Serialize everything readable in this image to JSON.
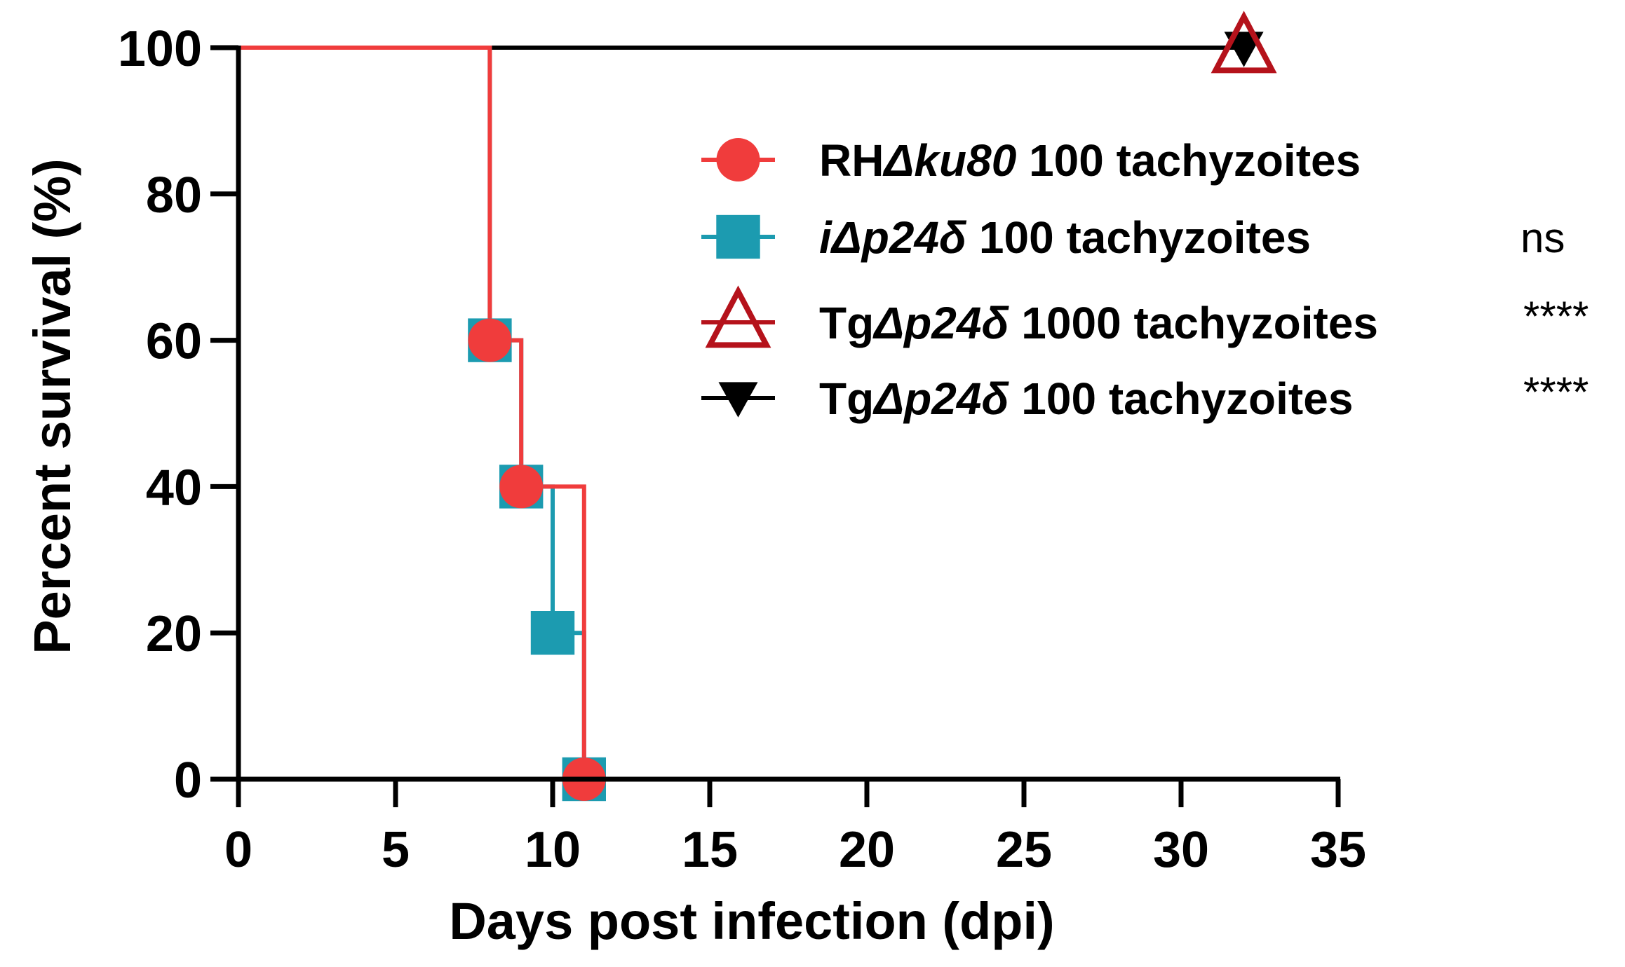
{
  "chart_data": {
    "type": "line",
    "subtype": "kaplan-meier survival",
    "xlabel": "Days post infection (dpi)",
    "ylabel": "Percent survival (%)",
    "xlim": [
      0,
      35
    ],
    "ylim": [
      0,
      100
    ],
    "xticks": [
      0,
      5,
      10,
      15,
      20,
      25,
      30,
      35
    ],
    "yticks": [
      0,
      20,
      40,
      60,
      80,
      100
    ],
    "legend_position": "top-right",
    "series": [
      {
        "id": "rh",
        "name": "RHΔku80 100 tachyzoites",
        "name_roman": "RH",
        "name_italic": "Δku80",
        "name_suffix": " 100 tachyzoites",
        "significance": "",
        "color": "#f03c3c",
        "marker": "circle",
        "x": [
          0,
          8,
          9,
          11
        ],
        "y": [
          100,
          60,
          40,
          0
        ],
        "markers": [
          [
            8,
            60
          ],
          [
            9,
            40
          ],
          [
            11,
            0
          ]
        ]
      },
      {
        "id": "idelta",
        "name": "iΔp24δ 100 tachyzoites",
        "name_roman": "",
        "name_italic": "iΔp24δ",
        "name_suffix": " 100 tachyzoites",
        "significance": "ns",
        "color": "#1c9bb0",
        "marker": "square",
        "x": [
          0,
          8,
          9,
          10,
          11
        ],
        "y": [
          100,
          60,
          40,
          20,
          0
        ],
        "markers": [
          [
            8,
            60
          ],
          [
            9,
            40
          ],
          [
            10,
            20
          ],
          [
            11,
            0
          ]
        ]
      },
      {
        "id": "tg1000",
        "name": "TgΔp24δ 1000 tachyzoites",
        "name_roman": "Tg",
        "name_italic": "Δp24δ",
        "name_suffix": " 1000 tachyzoites",
        "significance": "****",
        "color": "#b5121b",
        "marker": "triangle-up-open",
        "x": [
          0,
          32
        ],
        "y": [
          100,
          100
        ],
        "markers": [
          [
            32,
            100
          ]
        ]
      },
      {
        "id": "tg100",
        "name": "TgΔp24δ 100 tachyzoites",
        "name_roman": "Tg",
        "name_italic": "Δp24δ",
        "name_suffix": " 100 tachyzoites",
        "significance": "****",
        "color": "#000000",
        "marker": "triangle-down",
        "x": [
          0,
          32
        ],
        "y": [
          100,
          100
        ],
        "markers": [
          [
            32,
            100
          ]
        ]
      }
    ]
  }
}
